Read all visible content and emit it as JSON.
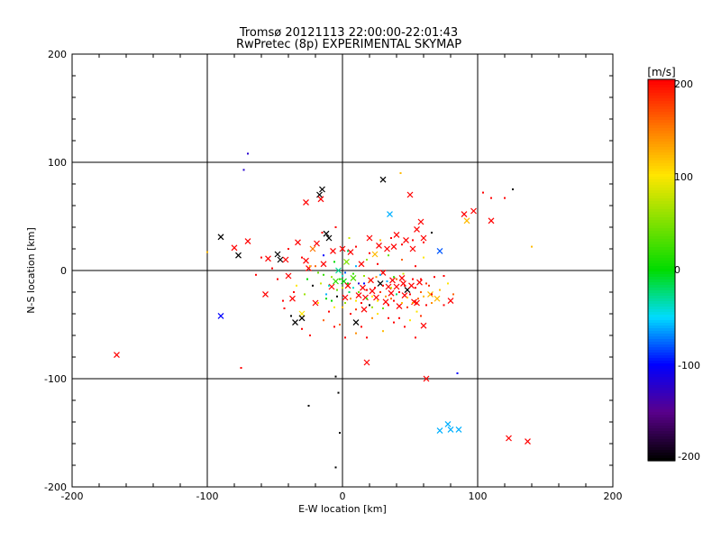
{
  "chart_data": {
    "type": "scatter",
    "title": "Tromsø 20121113 22:00:00-22:01:43",
    "subtitle": "RwPretec (8p) EXPERIMENTAL SKYMAP",
    "xlabel": "E-W location [km]",
    "ylabel": "N-S location [km]",
    "xlim": [
      -200,
      200
    ],
    "ylim": [
      -200,
      200
    ],
    "xticks": [
      "-200",
      "-100",
      "0",
      "100",
      "200"
    ],
    "yticks": [
      "-200",
      "-100",
      "0",
      "100",
      "200"
    ],
    "grid": true,
    "colorbar": {
      "label": "[m/s]",
      "range": [
        -200,
        200
      ],
      "ticks": [
        "-200",
        "-100",
        "0",
        "100",
        "200"
      ]
    },
    "series": [
      {
        "marker": "x",
        "points": [
          [
            -167,
            -78,
            200
          ],
          [
            -90,
            -42,
            -100
          ],
          [
            -90,
            31,
            -200
          ],
          [
            -80,
            21,
            200
          ],
          [
            -77,
            14,
            -200
          ],
          [
            -70,
            27,
            200
          ],
          [
            -57,
            -22,
            200
          ],
          [
            -55,
            11,
            200
          ],
          [
            -48,
            15,
            -200
          ],
          [
            -46,
            10,
            -200
          ],
          [
            -42,
            10,
            200
          ],
          [
            -40,
            -5,
            200
          ],
          [
            -37,
            -26,
            200
          ],
          [
            -35,
            -48,
            -200
          ],
          [
            -33,
            26,
            200
          ],
          [
            -30,
            -40,
            100
          ],
          [
            -30,
            -44,
            -200
          ],
          [
            -27,
            63,
            200
          ],
          [
            -27,
            9,
            200
          ],
          [
            -25,
            2,
            200
          ],
          [
            -22,
            20,
            150
          ],
          [
            -20,
            -30,
            200
          ],
          [
            -19,
            25,
            200
          ],
          [
            -17,
            70,
            -200
          ],
          [
            -16,
            66,
            200
          ],
          [
            -15,
            75,
            -200
          ],
          [
            -14,
            6,
            200
          ],
          [
            -12,
            34,
            -200
          ],
          [
            -10,
            30,
            -200
          ],
          [
            -8,
            -15,
            200
          ],
          [
            -7,
            18,
            200
          ],
          [
            -5,
            -10,
            20
          ],
          [
            -3,
            0,
            -30
          ],
          [
            0,
            20,
            200
          ],
          [
            1,
            -10,
            0
          ],
          [
            2,
            -25,
            200
          ],
          [
            3,
            8,
            50
          ],
          [
            4,
            -14,
            200
          ],
          [
            6,
            17,
            200
          ],
          [
            8,
            -7,
            30
          ],
          [
            10,
            -48,
            -200
          ],
          [
            12,
            -23,
            200
          ],
          [
            14,
            6,
            200
          ],
          [
            15,
            -16,
            200
          ],
          [
            16,
            -36,
            200
          ],
          [
            17,
            -25,
            200
          ],
          [
            18,
            -85,
            200
          ],
          [
            20,
            30,
            200
          ],
          [
            21,
            -9,
            200
          ],
          [
            22,
            -19,
            200
          ],
          [
            24,
            15,
            120
          ],
          [
            25,
            -25,
            200
          ],
          [
            27,
            23,
            200
          ],
          [
            28,
            -12,
            -200
          ],
          [
            30,
            -2,
            200
          ],
          [
            30,
            84,
            -200
          ],
          [
            32,
            -29,
            200
          ],
          [
            33,
            20,
            200
          ],
          [
            34,
            -15,
            200
          ],
          [
            35,
            52,
            -60
          ],
          [
            36,
            -21,
            200
          ],
          [
            37,
            -9,
            200
          ],
          [
            38,
            22,
            200
          ],
          [
            40,
            -15,
            200
          ],
          [
            40,
            33,
            200
          ],
          [
            42,
            -33,
            200
          ],
          [
            44,
            -7,
            200
          ],
          [
            45,
            -12,
            200
          ],
          [
            46,
            -23,
            200
          ],
          [
            47,
            28,
            200
          ],
          [
            48,
            -18,
            -200
          ],
          [
            50,
            70,
            200
          ],
          [
            51,
            -14,
            200
          ],
          [
            52,
            20,
            200
          ],
          [
            53,
            -29,
            200
          ],
          [
            55,
            38,
            200
          ],
          [
            55,
            -30,
            200
          ],
          [
            57,
            -11,
            200
          ],
          [
            58,
            45,
            200
          ],
          [
            60,
            -51,
            200
          ],
          [
            60,
            30,
            200
          ],
          [
            62,
            -100,
            200
          ],
          [
            65,
            -22,
            120
          ],
          [
            70,
            -26,
            120
          ],
          [
            72,
            18,
            -80
          ],
          [
            72,
            -148,
            -60
          ],
          [
            78,
            -142,
            -60
          ],
          [
            80,
            -28,
            200
          ],
          [
            80,
            -147,
            -60
          ],
          [
            86,
            -147,
            -60
          ],
          [
            90,
            52,
            200
          ],
          [
            92,
            46,
            120
          ],
          [
            97,
            55,
            200
          ],
          [
            110,
            46,
            200
          ],
          [
            123,
            -155,
            200
          ],
          [
            137,
            -158,
            200
          ]
        ]
      },
      {
        "marker": "dot",
        "points": [
          [
            -70,
            108,
            -120
          ],
          [
            -73,
            93,
            -120
          ],
          [
            -75,
            -90,
            200
          ],
          [
            -100,
            17,
            120
          ],
          [
            -5,
            -98,
            -200
          ],
          [
            -3,
            -113,
            -200
          ],
          [
            -2,
            -150,
            -200
          ],
          [
            -5,
            -182,
            -200
          ],
          [
            -25,
            -125,
            -200
          ],
          [
            43,
            90,
            120
          ],
          [
            75,
            -5,
            200
          ],
          [
            85,
            -95,
            -100
          ],
          [
            104,
            72,
            200
          ],
          [
            110,
            67,
            200
          ],
          [
            120,
            67,
            200
          ],
          [
            126,
            75,
            -200
          ],
          [
            140,
            22,
            120
          ],
          [
            -43,
            -35,
            200
          ],
          [
            -36,
            -20,
            200
          ],
          [
            -26,
            -8,
            0
          ],
          [
            -18,
            -30,
            100
          ],
          [
            -12,
            -22,
            -60
          ],
          [
            -8,
            -28,
            0
          ],
          [
            -4,
            -18,
            40
          ],
          [
            0,
            -5,
            -40
          ],
          [
            2,
            -30,
            60
          ],
          [
            5,
            -20,
            -20
          ],
          [
            8,
            -3,
            20
          ],
          [
            10,
            -28,
            100
          ],
          [
            12,
            -12,
            -120
          ],
          [
            16,
            -5,
            60
          ],
          [
            18,
            -18,
            200
          ],
          [
            20,
            -32,
            -200
          ],
          [
            22,
            -24,
            100
          ],
          [
            25,
            -6,
            140
          ],
          [
            28,
            -20,
            180
          ],
          [
            30,
            -35,
            40
          ],
          [
            33,
            -10,
            -60
          ],
          [
            36,
            -26,
            160
          ],
          [
            38,
            -6,
            20
          ],
          [
            40,
            -22,
            -20
          ],
          [
            42,
            -44,
            200
          ],
          [
            45,
            -3,
            80
          ],
          [
            48,
            -25,
            120
          ],
          [
            52,
            -8,
            200
          ],
          [
            55,
            -38,
            100
          ],
          [
            58,
            -20,
            160
          ],
          [
            62,
            -12,
            180
          ],
          [
            66,
            -30,
            140
          ],
          [
            68,
            -6,
            200
          ],
          [
            72,
            -18,
            120
          ],
          [
            75,
            -32,
            200
          ],
          [
            78,
            -12,
            100
          ],
          [
            82,
            -22,
            160
          ],
          [
            -30,
            12,
            200
          ],
          [
            -24,
            4,
            120
          ],
          [
            -18,
            -2,
            40
          ],
          [
            -14,
            14,
            -100
          ],
          [
            -10,
            -38,
            200
          ],
          [
            -6,
            8,
            0
          ],
          [
            -2,
            -50,
            160
          ],
          [
            4,
            18,
            -20
          ],
          [
            6,
            -40,
            200
          ],
          [
            10,
            4,
            -60
          ],
          [
            14,
            -52,
            200
          ],
          [
            18,
            10,
            60
          ],
          [
            22,
            -44,
            140
          ],
          [
            26,
            6,
            200
          ],
          [
            30,
            -56,
            120
          ],
          [
            34,
            14,
            40
          ],
          [
            38,
            -48,
            200
          ],
          [
            44,
            10,
            160
          ],
          [
            50,
            -46,
            100
          ],
          [
            54,
            4,
            200
          ],
          [
            58,
            -42,
            180
          ],
          [
            60,
            12,
            100
          ],
          [
            -48,
            -8,
            200
          ],
          [
            -40,
            20,
            200
          ],
          [
            -34,
            -14,
            100
          ],
          [
            -28,
            -22,
            60
          ],
          [
            -22,
            -14,
            -200
          ],
          [
            -20,
            4,
            160
          ],
          [
            -16,
            -12,
            80
          ],
          [
            -14,
            -4,
            20
          ],
          [
            -12,
            -26,
            0
          ],
          [
            -10,
            -14,
            -40
          ],
          [
            -8,
            -6,
            60
          ],
          [
            -6,
            -34,
            100
          ],
          [
            -4,
            -24,
            -200
          ],
          [
            -2,
            -8,
            20
          ],
          [
            0,
            -16,
            80
          ],
          [
            0,
            -34,
            120
          ],
          [
            2,
            -2,
            -80
          ],
          [
            4,
            -12,
            0
          ],
          [
            6,
            -26,
            140
          ],
          [
            8,
            -16,
            -40
          ],
          [
            10,
            -36,
            180
          ],
          [
            12,
            -20,
            40
          ],
          [
            14,
            -30,
            200
          ],
          [
            16,
            -12,
            -100
          ],
          [
            18,
            -26,
            20
          ],
          [
            20,
            -10,
            160
          ],
          [
            22,
            -34,
            60
          ],
          [
            24,
            -16,
            200
          ],
          [
            26,
            -28,
            100
          ],
          [
            28,
            -4,
            -60
          ],
          [
            30,
            -14,
            200
          ],
          [
            32,
            -24,
            140
          ],
          [
            34,
            -32,
            200
          ],
          [
            36,
            -16,
            80
          ],
          [
            38,
            -28,
            200
          ],
          [
            40,
            -8,
            160
          ],
          [
            42,
            -20,
            200
          ],
          [
            44,
            -30,
            120
          ],
          [
            46,
            -14,
            200
          ],
          [
            48,
            -34,
            180
          ],
          [
            50,
            -22,
            200
          ],
          [
            52,
            -30,
            140
          ],
          [
            54,
            -16,
            200
          ],
          [
            56,
            -26,
            160
          ],
          [
            58,
            -8,
            200
          ],
          [
            60,
            -24,
            120
          ],
          [
            62,
            -32,
            200
          ],
          [
            64,
            -14,
            180
          ],
          [
            66,
            -22,
            200
          ],
          [
            -15,
            35,
            200
          ],
          [
            -5,
            40,
            200
          ],
          [
            5,
            30,
            80
          ],
          [
            10,
            22,
            200
          ],
          [
            20,
            16,
            200
          ],
          [
            28,
            28,
            120
          ],
          [
            36,
            30,
            200
          ],
          [
            44,
            24,
            200
          ],
          [
            52,
            28,
            200
          ],
          [
            60,
            26,
            200
          ],
          [
            66,
            35,
            -200
          ],
          [
            -52,
            2,
            200
          ],
          [
            -60,
            12,
            200
          ],
          [
            -64,
            -4,
            200
          ],
          [
            -44,
            -28,
            200
          ],
          [
            -38,
            -42,
            -200
          ],
          [
            -30,
            -54,
            200
          ],
          [
            -24,
            -60,
            200
          ],
          [
            -14,
            -46,
            160
          ],
          [
            -6,
            -52,
            200
          ],
          [
            2,
            -62,
            200
          ],
          [
            10,
            -58,
            140
          ],
          [
            18,
            -62,
            200
          ],
          [
            26,
            -40,
            100
          ],
          [
            34,
            -44,
            200
          ],
          [
            46,
            -52,
            200
          ],
          [
            54,
            -62,
            200
          ]
        ]
      }
    ]
  }
}
